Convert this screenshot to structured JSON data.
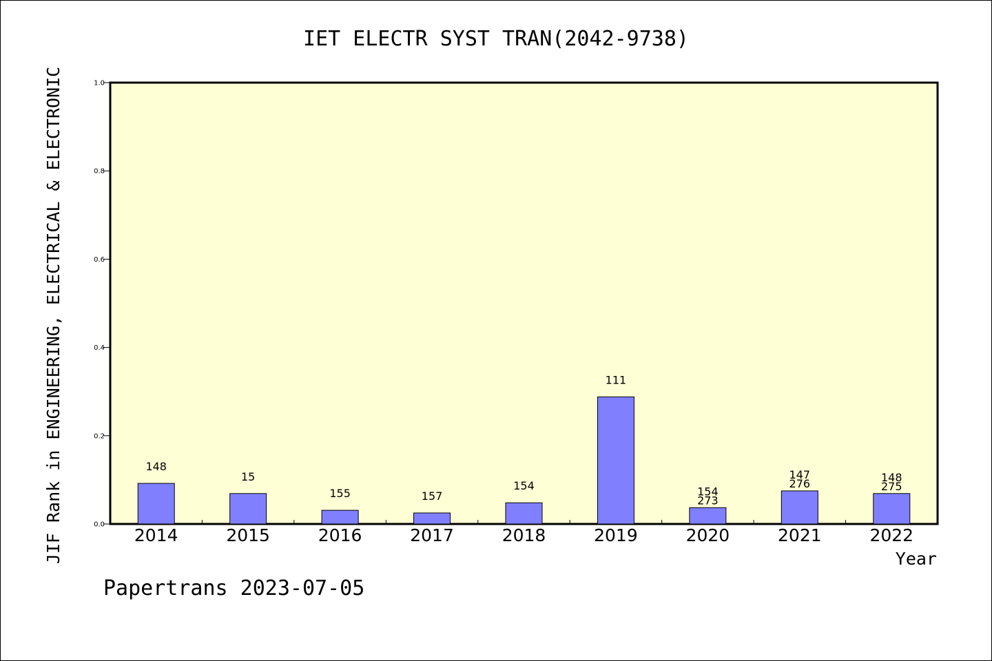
{
  "chart_data": {
    "type": "bar",
    "title": "IET ELECTR SYST TRAN(2042-9738)",
    "xlabel": "Year",
    "ylabel": "JIF Rank in ENGINEERING, ELECTRICAL & ELECTRONIC",
    "categories": [
      "2014",
      "2015",
      "2016",
      "2017",
      "2018",
      "2019",
      "2020",
      "2021",
      "2022"
    ],
    "values": [
      0.092,
      0.069,
      0.031,
      0.025,
      0.048,
      0.288,
      0.037,
      0.075,
      0.069
    ],
    "bar_labels": [
      [
        "148"
      ],
      [
        "15"
      ],
      [
        "155"
      ],
      [
        "157"
      ],
      [
        "154"
      ],
      [
        "111"
      ],
      [
        "154",
        "273"
      ],
      [
        "147",
        "276"
      ],
      [
        "148",
        "275"
      ]
    ],
    "ylim": [
      0,
      1.0
    ],
    "yticks": [
      "0.0",
      "0.2",
      "0.4",
      "0.6",
      "0.8",
      "1.0"
    ],
    "grid": false,
    "legend": "none",
    "colors": {
      "bar": "#8080ff",
      "plot_bg": "#ffffd6",
      "axis": "#000000"
    }
  },
  "footer": {
    "text": "Papertrans 2023-07-05"
  }
}
